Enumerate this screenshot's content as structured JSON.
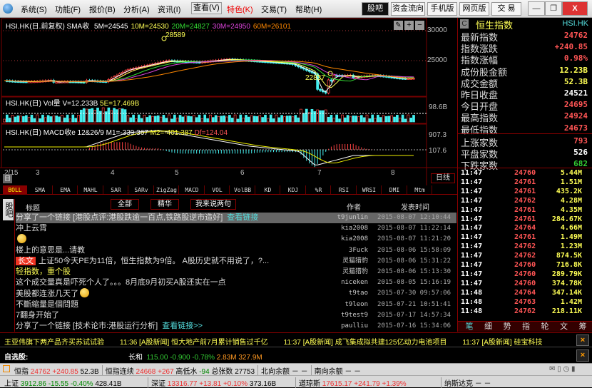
{
  "menu": {
    "items": [
      "系统(S)",
      "功能(F)",
      "报价(B)",
      "分析(A)",
      "资讯(I)",
      "查看(V)",
      "特色(K)",
      "交易(T)",
      "帮助(H)"
    ],
    "buttons": [
      "股吧",
      "资金流向",
      "手机版",
      "网页版",
      "交 易"
    ],
    "win": [
      "—",
      "❐",
      "X"
    ]
  },
  "main_chart": {
    "header": "HSI.HK(日.前复权) SMA收",
    "ma": [
      {
        "label": "5M=24545",
        "color": "#ffffff"
      },
      {
        "label": "10M=24530",
        "color": "#ffff55"
      },
      {
        "label": "20M=24827",
        "color": "#33dd33"
      },
      {
        "label": "30M=24950",
        "color": "#dd44dd"
      },
      {
        "label": "60M=26101",
        "color": "#ff8800"
      }
    ],
    "y_ticks": [
      "30000",
      "25000"
    ],
    "high_label": "28589",
    "low_label": "22837",
    "tools": [
      "✎",
      "+",
      "−"
    ]
  },
  "vol_chart": {
    "header": "HSI.HK(日) Vol量",
    "v": "V=12.233B",
    "e": "5E=17.469B",
    "y_tick": "98.6B"
  },
  "macd_chart": {
    "header": "HSI.HK(日) MACD收e 12&26/9",
    "m1": "M1=-339.367",
    "m2": "M2=-401.387",
    "df": "Df=124.04",
    "y_ticks": [
      "907.3",
      "107.6"
    ]
  },
  "date_axis": [
    "2/15",
    "3",
    "4",
    "5",
    "6",
    "7",
    "8"
  ],
  "period_button": "日线",
  "period_icon": "日",
  "indicator_tabs": [
    "BOLL",
    "SMA",
    "EMA",
    "MAHL",
    "SAR",
    "SARv",
    "ZigZag",
    "MACD",
    "VOL",
    "VolBB",
    "KD",
    "KDJ",
    "%R",
    "RSI",
    "WRSI",
    "DMI",
    "Mtm"
  ],
  "quote": {
    "badge": "C",
    "name": "恒生指数",
    "code": "HSI.HK",
    "rows": [
      {
        "label": "最新指数",
        "value": "24762",
        "color": "#ff5555"
      },
      {
        "label": "指数涨跌",
        "value": "+240.85",
        "color": "#ff5555"
      },
      {
        "label": "指数涨幅",
        "value": "0.98%",
        "color": "#ff5555"
      },
      {
        "label": "成份股金额",
        "value": "12.23B",
        "color": "#ffff55"
      },
      {
        "label": "成交金额",
        "value": "52.3B",
        "color": "#ffff55"
      },
      {
        "label": "昨日收盘",
        "value": "24521",
        "color": "#ffffff"
      },
      {
        "label": "今日开盘",
        "value": "24695",
        "color": "#ff5555"
      },
      {
        "label": "最高指数",
        "value": "24924",
        "color": "#ff5555"
      },
      {
        "label": "最低指数",
        "value": "24673",
        "color": "#ff5555"
      },
      {
        "label": "上涨家数",
        "value": "793",
        "color": "#ff5555"
      },
      {
        "label": "平盘家数",
        "value": "526",
        "color": "#ffffff"
      },
      {
        "label": "下跌家数",
        "value": "682",
        "color": "#33cc33"
      }
    ]
  },
  "ticks": [
    [
      "11:47",
      "24760",
      "5.44M"
    ],
    [
      "11:47",
      "24761",
      "1.51M"
    ],
    [
      "11:47",
      "24761",
      "435.2K"
    ],
    [
      "11:47",
      "24762",
      "4.28M"
    ],
    [
      "11:47",
      "24761",
      "4.35M"
    ],
    [
      "11:47",
      "24761",
      "284.67K"
    ],
    [
      "11:47",
      "24764",
      "4.66M"
    ],
    [
      "11:47",
      "24761",
      "1.49M"
    ],
    [
      "11:47",
      "24762",
      "1.23M"
    ],
    [
      "11:47",
      "24762",
      "874.5K"
    ],
    [
      "11:47",
      "24760",
      "716.8K"
    ],
    [
      "11:47",
      "24760",
      "289.79K"
    ],
    [
      "11:47",
      "24760",
      "374.78K"
    ],
    [
      "11:48",
      "24764",
      "347.14K"
    ],
    [
      "11:48",
      "24763",
      "1.42M"
    ],
    [
      "11:48",
      "24762",
      "218.11K"
    ]
  ],
  "bottom_tabs": [
    "笔",
    "细",
    "势",
    "指",
    "轮",
    "文",
    "筹"
  ],
  "forum": {
    "side_tab": "股吧",
    "col_title": "标题",
    "col_author": "作者",
    "col_time": "发表时间",
    "buttons": [
      "全部",
      "精华",
      "我来说两句"
    ],
    "posts": [
      {
        "title": "分享了一个链接  [港股点评:港股跌逾一百点,铁路股逆市造好]",
        "link": "查看链接",
        "author": "t9junlin",
        "time": "2015-08-07 12:10:44",
        "selected": true
      },
      {
        "title": "冲上云霄",
        "author": "kia2008",
        "time": "2015-08-07 11:22:14"
      },
      {
        "title": "",
        "emoji": "smile",
        "author": "kia2008",
        "time": "2015-08-07 11:21:20"
      },
      {
        "title": "楼上的意思是...请教",
        "author": "3Fuck",
        "time": "2015-08-06 15:58:09"
      },
      {
        "badge": "长文",
        "title": "上证50今天PE为11倍，恒生指数为9倍。 A股历史就不用说了，?...",
        "author": "灵猫猎豹",
        "time": "2015-08-06 15:31:22"
      },
      {
        "title": "轻指数，重个股",
        "color": "#ffff55",
        "author": "灵猫猎豹",
        "time": "2015-08-06 15:13:30"
      },
      {
        "title": "这个成交量真是吓死个人了。。。8月底9月初买A股还实在一点",
        "author": "niceken",
        "time": "2015-08-05 15:16:19"
      },
      {
        "title": "美股都连涨几天了",
        "emoji": "sad",
        "author": "t9tao",
        "time": "2015-07-30 09:57:06"
      },
      {
        "title": "不斷縮量是個問題",
        "author": "t9leon",
        "time": "2015-07-21 10:51:41"
      },
      {
        "title": "7翻身开始了",
        "author": "t9test9",
        "time": "2015-07-17 14:57:34"
      },
      {
        "title": "分享了一个链接  [技术论市:港股运行分析]",
        "link": "查看链接>>",
        "author": "paulliu",
        "time": "2015-07-16 15:34:06"
      }
    ]
  },
  "news": [
    "王亚伟旗下两产品齐买苏试试验",
    "11:36 [A股新闻] 恒大地产前7月累计销售过千亿",
    "11:37 [A股新闻] 成飞集成拟共建125亿动力电池项目",
    "11:37 [A股新闻] 硅宝科技"
  ],
  "watch": {
    "label": "自选股:",
    "name": "长和",
    "price": "115.00",
    "chg": "-0.900",
    "pct": "-0.78%",
    "vol": "2.83M",
    "amt": "327.9M"
  },
  "status1": {
    "hsi": "恒指",
    "hsi_v": "24762",
    "hsi_c": "+240.85",
    "hsi_a": "52.3B",
    "fut": "恒指连续",
    "fut_v": "24668",
    "fut_c": "+267",
    "prem": "高低水",
    "prem_v": "-94",
    "cnt": "总张数",
    "cnt_v": "27753",
    "north": "北向余额",
    "north_v": "－ －",
    "south": "南向余额",
    "south_v": "－ －"
  },
  "status2": {
    "sh": "上证",
    "sh_v": "3912.86",
    "sh_c": "-15.55",
    "sh_p": "-0.40%",
    "sh_a": "428.41B",
    "sz": "深证",
    "sz_v": "13316.77",
    "sz_c": "+13.81",
    "sz_p": "+0.10%",
    "sz_a": "373.16B",
    "dj": "道琼斯",
    "dj_v": "17615.17",
    "dj_c": "+241.79",
    "dj_p": "+1.39%",
    "nq": "纳斯达克",
    "nq_v": "－ －"
  }
}
